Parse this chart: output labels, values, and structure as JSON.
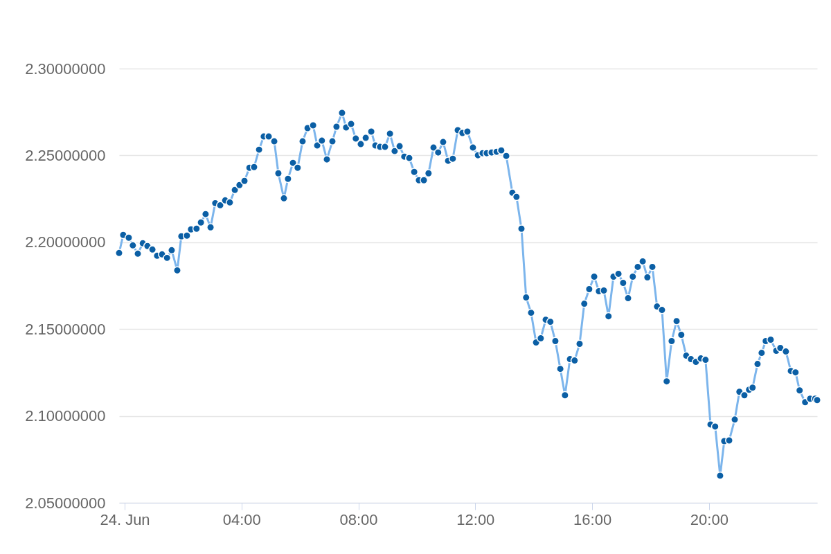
{
  "chart_data": {
    "type": "line",
    "x": [
      -0.19,
      -0.05,
      0.14,
      0.28,
      0.45,
      0.62,
      0.78,
      0.95,
      1.11,
      1.28,
      1.45,
      1.61,
      1.8,
      1.94,
      2.13,
      2.27,
      2.46,
      2.61,
      2.77,
      2.94,
      3.1,
      3.27,
      3.44,
      3.6,
      3.77,
      3.93,
      4.1,
      4.27,
      4.43,
      4.6,
      4.76,
      4.93,
      5.12,
      5.26,
      5.45,
      5.59,
      5.76,
      5.92,
      6.09,
      6.26,
      6.45,
      6.59,
      6.75,
      6.92,
      7.11,
      7.25,
      7.44,
      7.58,
      7.75,
      7.91,
      8.08,
      8.25,
      8.44,
      8.58,
      8.74,
      8.91,
      9.08,
      9.24,
      9.41,
      9.57,
      9.74,
      9.91,
      10.07,
      10.24,
      10.4,
      10.57,
      10.73,
      10.9,
      11.07,
      11.23,
      11.4,
      11.56,
      11.73,
      11.92,
      12.09,
      12.25,
      12.39,
      12.56,
      12.73,
      12.89,
      13.06,
      13.27,
      13.41,
      13.58,
      13.74,
      13.91,
      14.08,
      14.24,
      14.41,
      14.57,
      14.74,
      14.91,
      15.07,
      15.24,
      15.4,
      15.57,
      15.73,
      15.9,
      16.07,
      16.23,
      16.4,
      16.56,
      16.73,
      16.9,
      17.06,
      17.23,
      17.39,
      17.56,
      17.73,
      17.89,
      18.06,
      18.22,
      18.39,
      18.55,
      18.72,
      18.89,
      19.05,
      19.22,
      19.38,
      19.55,
      19.72,
      19.88,
      20.05,
      20.21,
      20.38,
      20.52,
      20.69,
      20.88,
      21.04,
      21.21,
      21.37,
      21.49,
      21.66,
      21.8,
      21.94,
      22.11,
      22.3,
      22.44,
      22.63,
      22.8,
      22.96,
      23.1,
      23.29,
      23.46,
      23.63,
      23.7
    ],
    "series": [
      {
        "color": "#7cb5ec",
        "values": [
          2.1938,
          2.2042,
          2.2026,
          2.1982,
          2.1934,
          2.1994,
          2.1978,
          2.1958,
          2.1922,
          2.193,
          2.191,
          2.1954,
          2.1838,
          2.2034,
          2.2038,
          2.2074,
          2.2078,
          2.2114,
          2.2162,
          2.2086,
          2.2225,
          2.2213,
          2.2241,
          2.2229,
          2.2301,
          2.2329,
          2.2353,
          2.2429,
          2.2433,
          2.2533,
          2.2609,
          2.2609,
          2.2581,
          2.2397,
          2.2253,
          2.2365,
          2.2457,
          2.2429,
          2.2581,
          2.2657,
          2.2673,
          2.2557,
          2.2585,
          2.2477,
          2.2581,
          2.2665,
          2.2745,
          2.2661,
          2.2681,
          2.2597,
          2.2565,
          2.2601,
          2.2637,
          2.2557,
          2.2549,
          2.2549,
          2.2625,
          2.2525,
          2.2553,
          2.2493,
          2.2485,
          2.2405,
          2.2357,
          2.2357,
          2.2397,
          2.2545,
          2.2517,
          2.2577,
          2.2469,
          2.2481,
          2.2645,
          2.2629,
          2.2637,
          2.2545,
          2.2501,
          2.2513,
          2.2513,
          2.2517,
          2.2521,
          2.2529,
          2.2497,
          2.2285,
          2.2261,
          2.2078,
          2.1682,
          2.1594,
          2.1423,
          2.1447,
          2.1554,
          2.1542,
          2.1431,
          2.1271,
          2.1119,
          2.1327,
          2.1319,
          2.1415,
          2.1646,
          2.173,
          2.1802,
          2.1718,
          2.1722,
          2.1574,
          2.1802,
          2.1818,
          2.1766,
          2.1678,
          2.1802,
          2.1858,
          2.189,
          2.1798,
          2.1858,
          2.163,
          2.161,
          2.1199,
          2.1431,
          2.1546,
          2.1467,
          2.1347,
          2.1327,
          2.1311,
          2.1331,
          2.1323,
          2.0951,
          2.0939,
          2.0656,
          2.0855,
          2.0859,
          2.0979,
          2.1139,
          2.1119,
          2.1151,
          2.1163,
          2.1299,
          2.1363,
          2.1431,
          2.1439,
          2.1375,
          2.1391,
          2.1371,
          2.1259,
          2.1251,
          2.1147,
          2.1079,
          2.1099,
          2.1099,
          2.1091
        ]
      }
    ],
    "xlim": [
      -0.19,
      23.7
    ],
    "xticks": [
      {
        "value": 0,
        "label": "24. Jun"
      },
      {
        "value": 4,
        "label": "04:00"
      },
      {
        "value": 8,
        "label": "08:00"
      },
      {
        "value": 12,
        "label": "12:00"
      },
      {
        "value": 16,
        "label": "16:00"
      },
      {
        "value": 20,
        "label": "20:00"
      }
    ],
    "ylim": [
      2.05,
      2.3
    ],
    "yticks": [
      {
        "value": 2.05,
        "label": "2.05000000"
      },
      {
        "value": 2.1,
        "label": "2.10000000"
      },
      {
        "value": 2.15,
        "label": "2.15000000"
      },
      {
        "value": 2.2,
        "label": "2.20000000"
      },
      {
        "value": 2.25,
        "label": "2.25000000"
      },
      {
        "value": 2.3,
        "label": "2.30000000"
      }
    ],
    "grid": "y",
    "marker": "circle",
    "line_style": "solid"
  }
}
